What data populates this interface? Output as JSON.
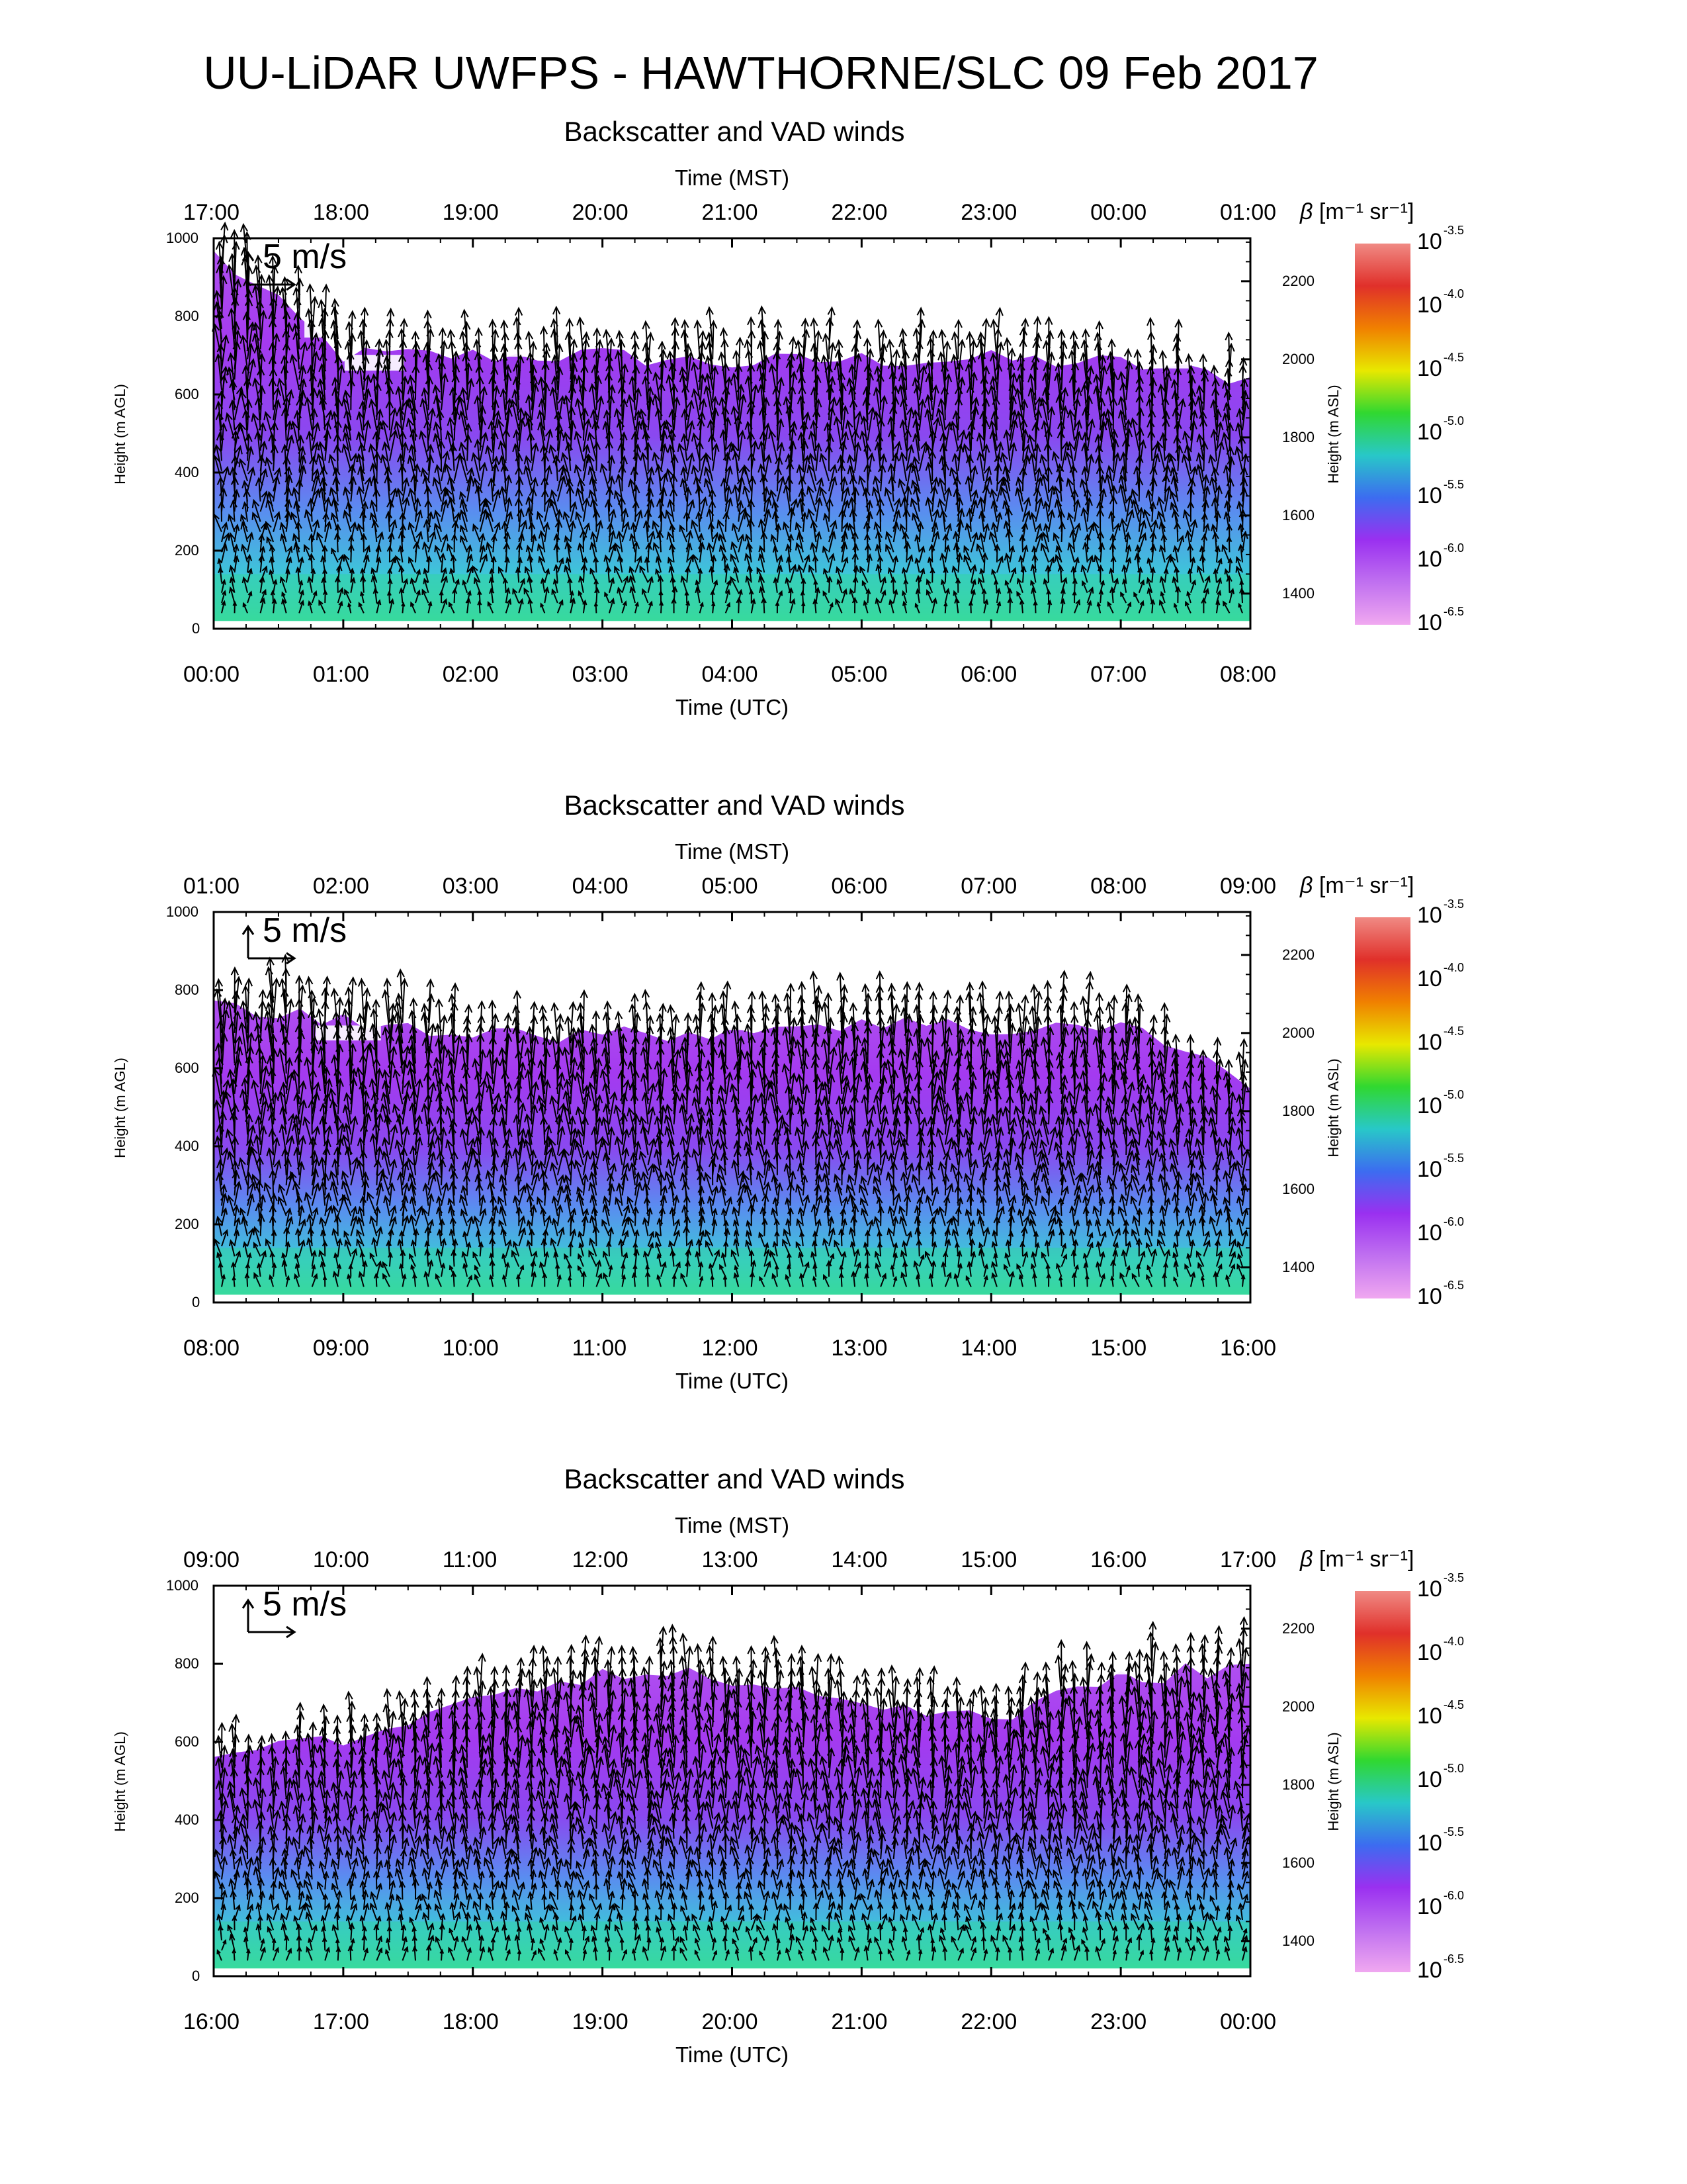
{
  "title": "UU-LiDAR UWFPS - HAWTHORNE/SLC 09 Feb 2017",
  "colorbar": {
    "label_symbol": "β",
    "label_units": "[m⁻¹ sr⁻¹]",
    "base": "10",
    "exponents": [
      "-3.5",
      "-4.0",
      "-4.5",
      "-5.0",
      "-5.5",
      "-6.0",
      "-6.5"
    ],
    "colors": [
      "#f08a84",
      "#e0302a",
      "#f08000",
      "#e8e800",
      "#30d830",
      "#28c8c8",
      "#3c6cf0",
      "#9a30f0",
      "#c070f0",
      "#f0a8f0"
    ]
  },
  "chart_data": [
    {
      "type": "heatmap",
      "title": "Backscatter and VAD winds",
      "xlabel": "Time (UTC)",
      "x2label": "Time (MST)",
      "ylabel": "Height (m AGL)",
      "y2label": "Height (m ASL)",
      "x_ticks": [
        "00:00",
        "01:00",
        "02:00",
        "03:00",
        "04:00",
        "05:00",
        "06:00",
        "07:00",
        "08:00"
      ],
      "x2_ticks": [
        "17:00",
        "18:00",
        "19:00",
        "20:00",
        "21:00",
        "22:00",
        "23:00",
        "00:00",
        "01:00"
      ],
      "y_ticks": [
        "0",
        "200",
        "400",
        "600",
        "800",
        "1000"
      ],
      "y2_ticks": [
        "1400",
        "1600",
        "1800",
        "2000",
        "2200"
      ],
      "ylim": [
        0,
        1000
      ],
      "y2lim": [
        1310,
        2310
      ],
      "vector_scale": "5 m/s",
      "aerosol_top_m_agl": [
        960,
        700,
        700,
        700,
        680,
        690,
        690,
        680,
        640
      ],
      "wind_speed_ms": [
        6,
        5,
        5,
        5,
        5,
        5,
        5,
        5,
        4
      ]
    },
    {
      "type": "heatmap",
      "title": "Backscatter and VAD winds",
      "xlabel": "Time (UTC)",
      "x2label": "Time (MST)",
      "ylabel": "Height (m AGL)",
      "y2label": "Height (m ASL)",
      "x_ticks": [
        "08:00",
        "09:00",
        "10:00",
        "11:00",
        "12:00",
        "13:00",
        "14:00",
        "15:00",
        "16:00"
      ],
      "x2_ticks": [
        "01:00",
        "02:00",
        "03:00",
        "04:00",
        "05:00",
        "06:00",
        "07:00",
        "08:00",
        "09:00"
      ],
      "y_ticks": [
        "0",
        "200",
        "400",
        "600",
        "800",
        "1000"
      ],
      "y2_ticks": [
        "1400",
        "1600",
        "1800",
        "2000",
        "2200"
      ],
      "ylim": [
        0,
        1000
      ],
      "y2lim": [
        1310,
        2310
      ],
      "vector_scale": "5 m/s",
      "aerosol_top_m_agl": [
        760,
        720,
        700,
        680,
        700,
        720,
        700,
        720,
        560
      ],
      "wind_speed_ms": [
        6,
        6,
        5,
        5,
        5,
        5,
        5,
        5,
        4
      ]
    },
    {
      "type": "heatmap",
      "title": "Backscatter and VAD winds",
      "xlabel": "Time (UTC)",
      "x2label": "Time (MST)",
      "ylabel": "Height (m AGL)",
      "y2label": "Height (m ASL)",
      "x_ticks": [
        "16:00",
        "17:00",
        "18:00",
        "19:00",
        "20:00",
        "21:00",
        "22:00",
        "23:00",
        "00:00"
      ],
      "x2_ticks": [
        "09:00",
        "10:00",
        "11:00",
        "12:00",
        "13:00",
        "14:00",
        "15:00",
        "16:00",
        "17:00"
      ],
      "y_ticks": [
        "0",
        "200",
        "400",
        "600",
        "800",
        "1000"
      ],
      "y2_ticks": [
        "1400",
        "1600",
        "1800",
        "2000",
        "2200"
      ],
      "ylim": [
        0,
        1000
      ],
      "y2lim": [
        1310,
        2310
      ],
      "vector_scale": "5 m/s",
      "aerosol_top_m_agl": [
        580,
        600,
        720,
        780,
        760,
        700,
        660,
        760,
        800
      ],
      "wind_speed_ms": [
        4,
        4,
        5,
        5,
        5,
        5,
        5,
        6,
        5
      ]
    }
  ]
}
